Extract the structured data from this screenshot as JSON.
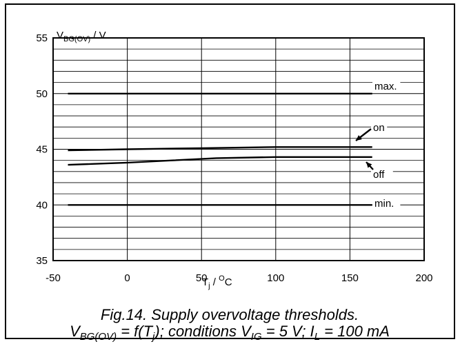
{
  "chart_data": {
    "type": "line",
    "ylabel": {
      "main": "V",
      "sub": "BG(OV)",
      "unit": " / V"
    },
    "xlabel": {
      "main": "T",
      "sub": "j",
      "sep": " / ",
      "sup": "O",
      "unit": "C"
    },
    "xlim": [
      -50,
      200
    ],
    "ylim": [
      35,
      55
    ],
    "x_ticks": [
      -50,
      0,
      50,
      100,
      150,
      200
    ],
    "y_ticks": [
      35,
      40,
      45,
      50,
      55
    ],
    "y_minor_step": 1,
    "grid": true,
    "series": [
      {
        "name": "max.",
        "x": [
          -40,
          165
        ],
        "y": [
          50,
          50
        ]
      },
      {
        "name": "on",
        "x": [
          -40,
          0,
          50,
          100,
          165
        ],
        "y": [
          44.9,
          45.0,
          45.1,
          45.2,
          45.2
        ]
      },
      {
        "name": "off",
        "x": [
          -40,
          0,
          30,
          60,
          100,
          165
        ],
        "y": [
          43.6,
          43.8,
          44.0,
          44.2,
          44.3,
          44.3
        ]
      },
      {
        "name": "min.",
        "x": [
          -40,
          165
        ],
        "y": [
          40,
          40
        ]
      }
    ]
  },
  "caption": {
    "line1": "Fig.14.   Supply overvoltage thresholds.",
    "line2": [
      {
        "t": "V",
        "s": "base"
      },
      {
        "t": "BG(OV)",
        "s": "sub"
      },
      {
        "t": " = f(T",
        "s": "base"
      },
      {
        "t": "j",
        "s": "sub"
      },
      {
        "t": "); conditions V",
        "s": "base"
      },
      {
        "t": "IG",
        "s": "sub"
      },
      {
        "t": " = 5 V; I",
        "s": "base"
      },
      {
        "t": "L",
        "s": "sub"
      },
      {
        "t": " = 100 mA",
        "s": "base"
      }
    ]
  }
}
